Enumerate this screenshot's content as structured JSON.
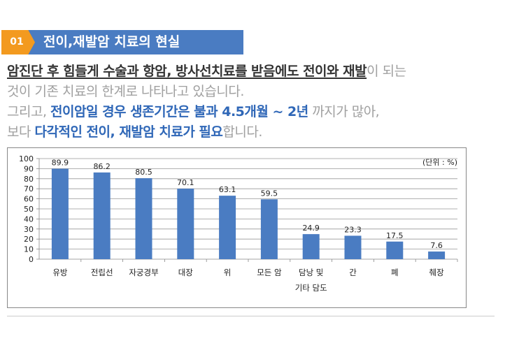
{
  "section": {
    "number": "01",
    "title": "전이,재발암 치료의 현실"
  },
  "paragraph": {
    "line1": {
      "emph": "암진단 후 힘들게 수술과 항암, 방사선치료를 받음에도 전이와 재발",
      "rest": "이 되는"
    },
    "line2": "것이 기존 치료의 한계로 나타나고 있습니다.",
    "line3": {
      "prefix": "그리고, ",
      "emph": "전이암일 경우 생존기간은 불과 4.5개월 ~ 2년",
      "rest": " 까지가 많아,"
    },
    "line4": {
      "prefix": "보다 ",
      "emph": "다각적인 전이, 재발암 치료가 필요",
      "rest": "합니다."
    }
  },
  "chart_data": {
    "type": "bar",
    "unit_label": "(단위 : %)",
    "categories": [
      "유방",
      "전립선",
      "자궁경부",
      "대장",
      "위",
      "모든 암",
      "담낭 및\n기타 담도",
      "간",
      "폐",
      "췌장"
    ],
    "values": [
      89.9,
      86.2,
      80.5,
      70.1,
      63.1,
      59.5,
      24.9,
      23.3,
      17.5,
      7.6
    ],
    "ylim": [
      0,
      100
    ],
    "yticks": [
      0,
      10,
      20,
      30,
      40,
      50,
      60,
      70,
      80,
      90,
      100
    ],
    "grid": true,
    "bar_color": "#4a7cc2"
  }
}
